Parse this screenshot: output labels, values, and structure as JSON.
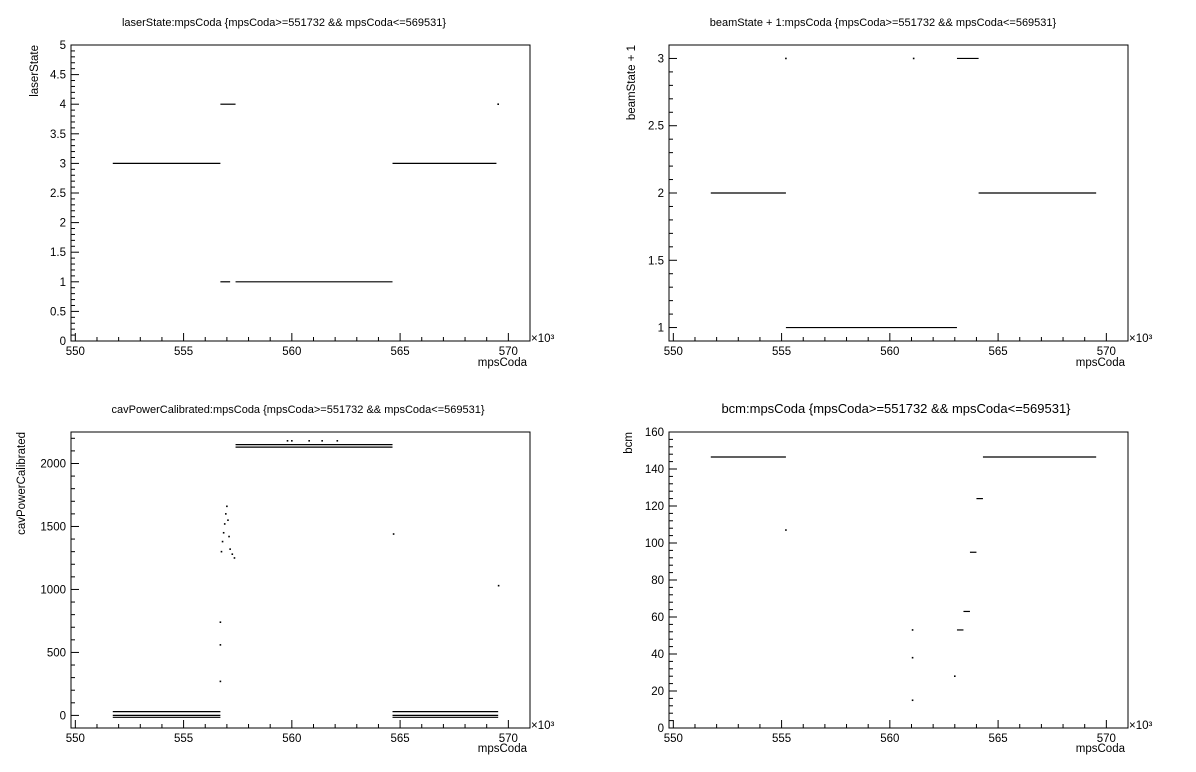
{
  "chart_data": [
    {
      "type": "scatter",
      "title": "laserState:mpsCoda {mpsCoda>=551732 && mpsCoda<=569531}",
      "xlabel": "mpsCoda",
      "ylabel": "laserState",
      "x_multiplier_label": "×10³",
      "xlim": [
        549.8,
        571.0
      ],
      "ylim": [
        0,
        5
      ],
      "xticks": [
        "550",
        "555",
        "560",
        "565",
        "570"
      ],
      "yticks": [
        "0",
        "0.5",
        "1",
        "1.5",
        "2",
        "2.5",
        "3",
        "3.5",
        "4",
        "4.5",
        "5"
      ],
      "grid": false,
      "segments": [
        {
          "x": [
            551.73,
            556.7
          ],
          "y": 3
        },
        {
          "x": [
            556.7,
            557.4
          ],
          "y": 4
        },
        {
          "x": [
            556.7,
            557.15
          ],
          "y": 1
        },
        {
          "x": [
            557.4,
            564.65
          ],
          "y": 1
        },
        {
          "x": [
            564.65,
            569.45
          ],
          "y": 3
        }
      ],
      "points": [
        {
          "x": 569.53,
          "y": 4
        }
      ]
    },
    {
      "type": "scatter",
      "title": "beamState + 1:mpsCoda {mpsCoda>=551732 && mpsCoda<=569531}",
      "xlabel": "mpsCoda",
      "ylabel": "beamState + 1",
      "x_multiplier_label": "×10³",
      "xlim": [
        549.8,
        571.0
      ],
      "ylim": [
        0.9,
        3.1
      ],
      "xticks": [
        "550",
        "555",
        "560",
        "565",
        "570"
      ],
      "yticks": [
        "1",
        "1.5",
        "2",
        "2.5",
        "3"
      ],
      "grid": false,
      "segments": [
        {
          "x": [
            551.73,
            555.2
          ],
          "y": 2
        },
        {
          "x": [
            555.2,
            563.1
          ],
          "y": 1
        },
        {
          "x": [
            563.1,
            564.1
          ],
          "y": 3
        },
        {
          "x": [
            564.1,
            569.53
          ],
          "y": 2
        }
      ],
      "points": [
        {
          "x": 555.2,
          "y": 3
        },
        {
          "x": 561.1,
          "y": 3
        }
      ]
    },
    {
      "type": "scatter",
      "title": "cavPowerCalibrated:mpsCoda {mpsCoda>=551732 && mpsCoda<=569531}",
      "xlabel": "mpsCoda",
      "ylabel": "cavPowerCalibrated",
      "x_multiplier_label": "×10³",
      "xlim": [
        549.8,
        571.0
      ],
      "ylim": [
        -100,
        2250
      ],
      "xticks": [
        "550",
        "555",
        "560",
        "565",
        "570"
      ],
      "yticks": [
        "0",
        "500",
        "1000",
        "1500",
        "2000"
      ],
      "grid": false,
      "segments": [
        {
          "x": [
            551.73,
            556.7
          ],
          "y": 30
        },
        {
          "x": [
            551.73,
            556.7
          ],
          "y": 0
        },
        {
          "x": [
            551.73,
            556.7
          ],
          "y": -15
        },
        {
          "x": [
            557.4,
            564.65
          ],
          "y": 2150
        },
        {
          "x": [
            557.4,
            564.65
          ],
          "y": 2130
        },
        {
          "x": [
            564.65,
            569.53
          ],
          "y": 30
        },
        {
          "x": [
            564.65,
            569.53
          ],
          "y": 0
        },
        {
          "x": [
            564.65,
            569.53
          ],
          "y": -15
        }
      ],
      "points": [
        {
          "x": 556.7,
          "y": 270
        },
        {
          "x": 556.7,
          "y": 560
        },
        {
          "x": 556.7,
          "y": 740
        },
        {
          "x": 556.75,
          "y": 1300
        },
        {
          "x": 556.8,
          "y": 1380
        },
        {
          "x": 556.85,
          "y": 1450
        },
        {
          "x": 556.9,
          "y": 1520
        },
        {
          "x": 556.95,
          "y": 1600
        },
        {
          "x": 557.0,
          "y": 1660
        },
        {
          "x": 557.05,
          "y": 1550
        },
        {
          "x": 557.1,
          "y": 1420
        },
        {
          "x": 557.15,
          "y": 1320
        },
        {
          "x": 557.25,
          "y": 1280
        },
        {
          "x": 557.35,
          "y": 1250
        },
        {
          "x": 559.8,
          "y": 2180
        },
        {
          "x": 560.0,
          "y": 2180
        },
        {
          "x": 560.8,
          "y": 2180
        },
        {
          "x": 561.4,
          "y": 2180
        },
        {
          "x": 562.1,
          "y": 2180
        },
        {
          "x": 564.7,
          "y": 1440
        },
        {
          "x": 569.55,
          "y": 1030
        }
      ]
    },
    {
      "type": "scatter",
      "title": "bcm:mpsCoda {mpsCoda>=551732 && mpsCoda<=569531}",
      "xlabel": "mpsCoda",
      "ylabel": "bcm",
      "x_multiplier_label": "×10³",
      "xlim": [
        549.8,
        571.0
      ],
      "ylim": [
        0,
        160
      ],
      "xticks": [
        "550",
        "555",
        "560",
        "565",
        "570"
      ],
      "yticks": [
        "0",
        "20",
        "40",
        "60",
        "80",
        "100",
        "120",
        "140",
        "160"
      ],
      "grid": false,
      "segments": [
        {
          "x": [
            551.73,
            555.2
          ],
          "y": 146.5
        },
        {
          "x": [
            563.1,
            563.4
          ],
          "y": 53
        },
        {
          "x": [
            563.4,
            563.7
          ],
          "y": 63
        },
        {
          "x": [
            563.7,
            564.0
          ],
          "y": 95
        },
        {
          "x": [
            564.0,
            564.3
          ],
          "y": 124
        },
        {
          "x": [
            564.3,
            569.53
          ],
          "y": 146.5
        }
      ],
      "points": [
        {
          "x": 555.2,
          "y": 107
        },
        {
          "x": 561.05,
          "y": 53
        },
        {
          "x": 561.05,
          "y": 38
        },
        {
          "x": 561.05,
          "y": 15
        },
        {
          "x": 563.0,
          "y": 28
        }
      ]
    }
  ]
}
